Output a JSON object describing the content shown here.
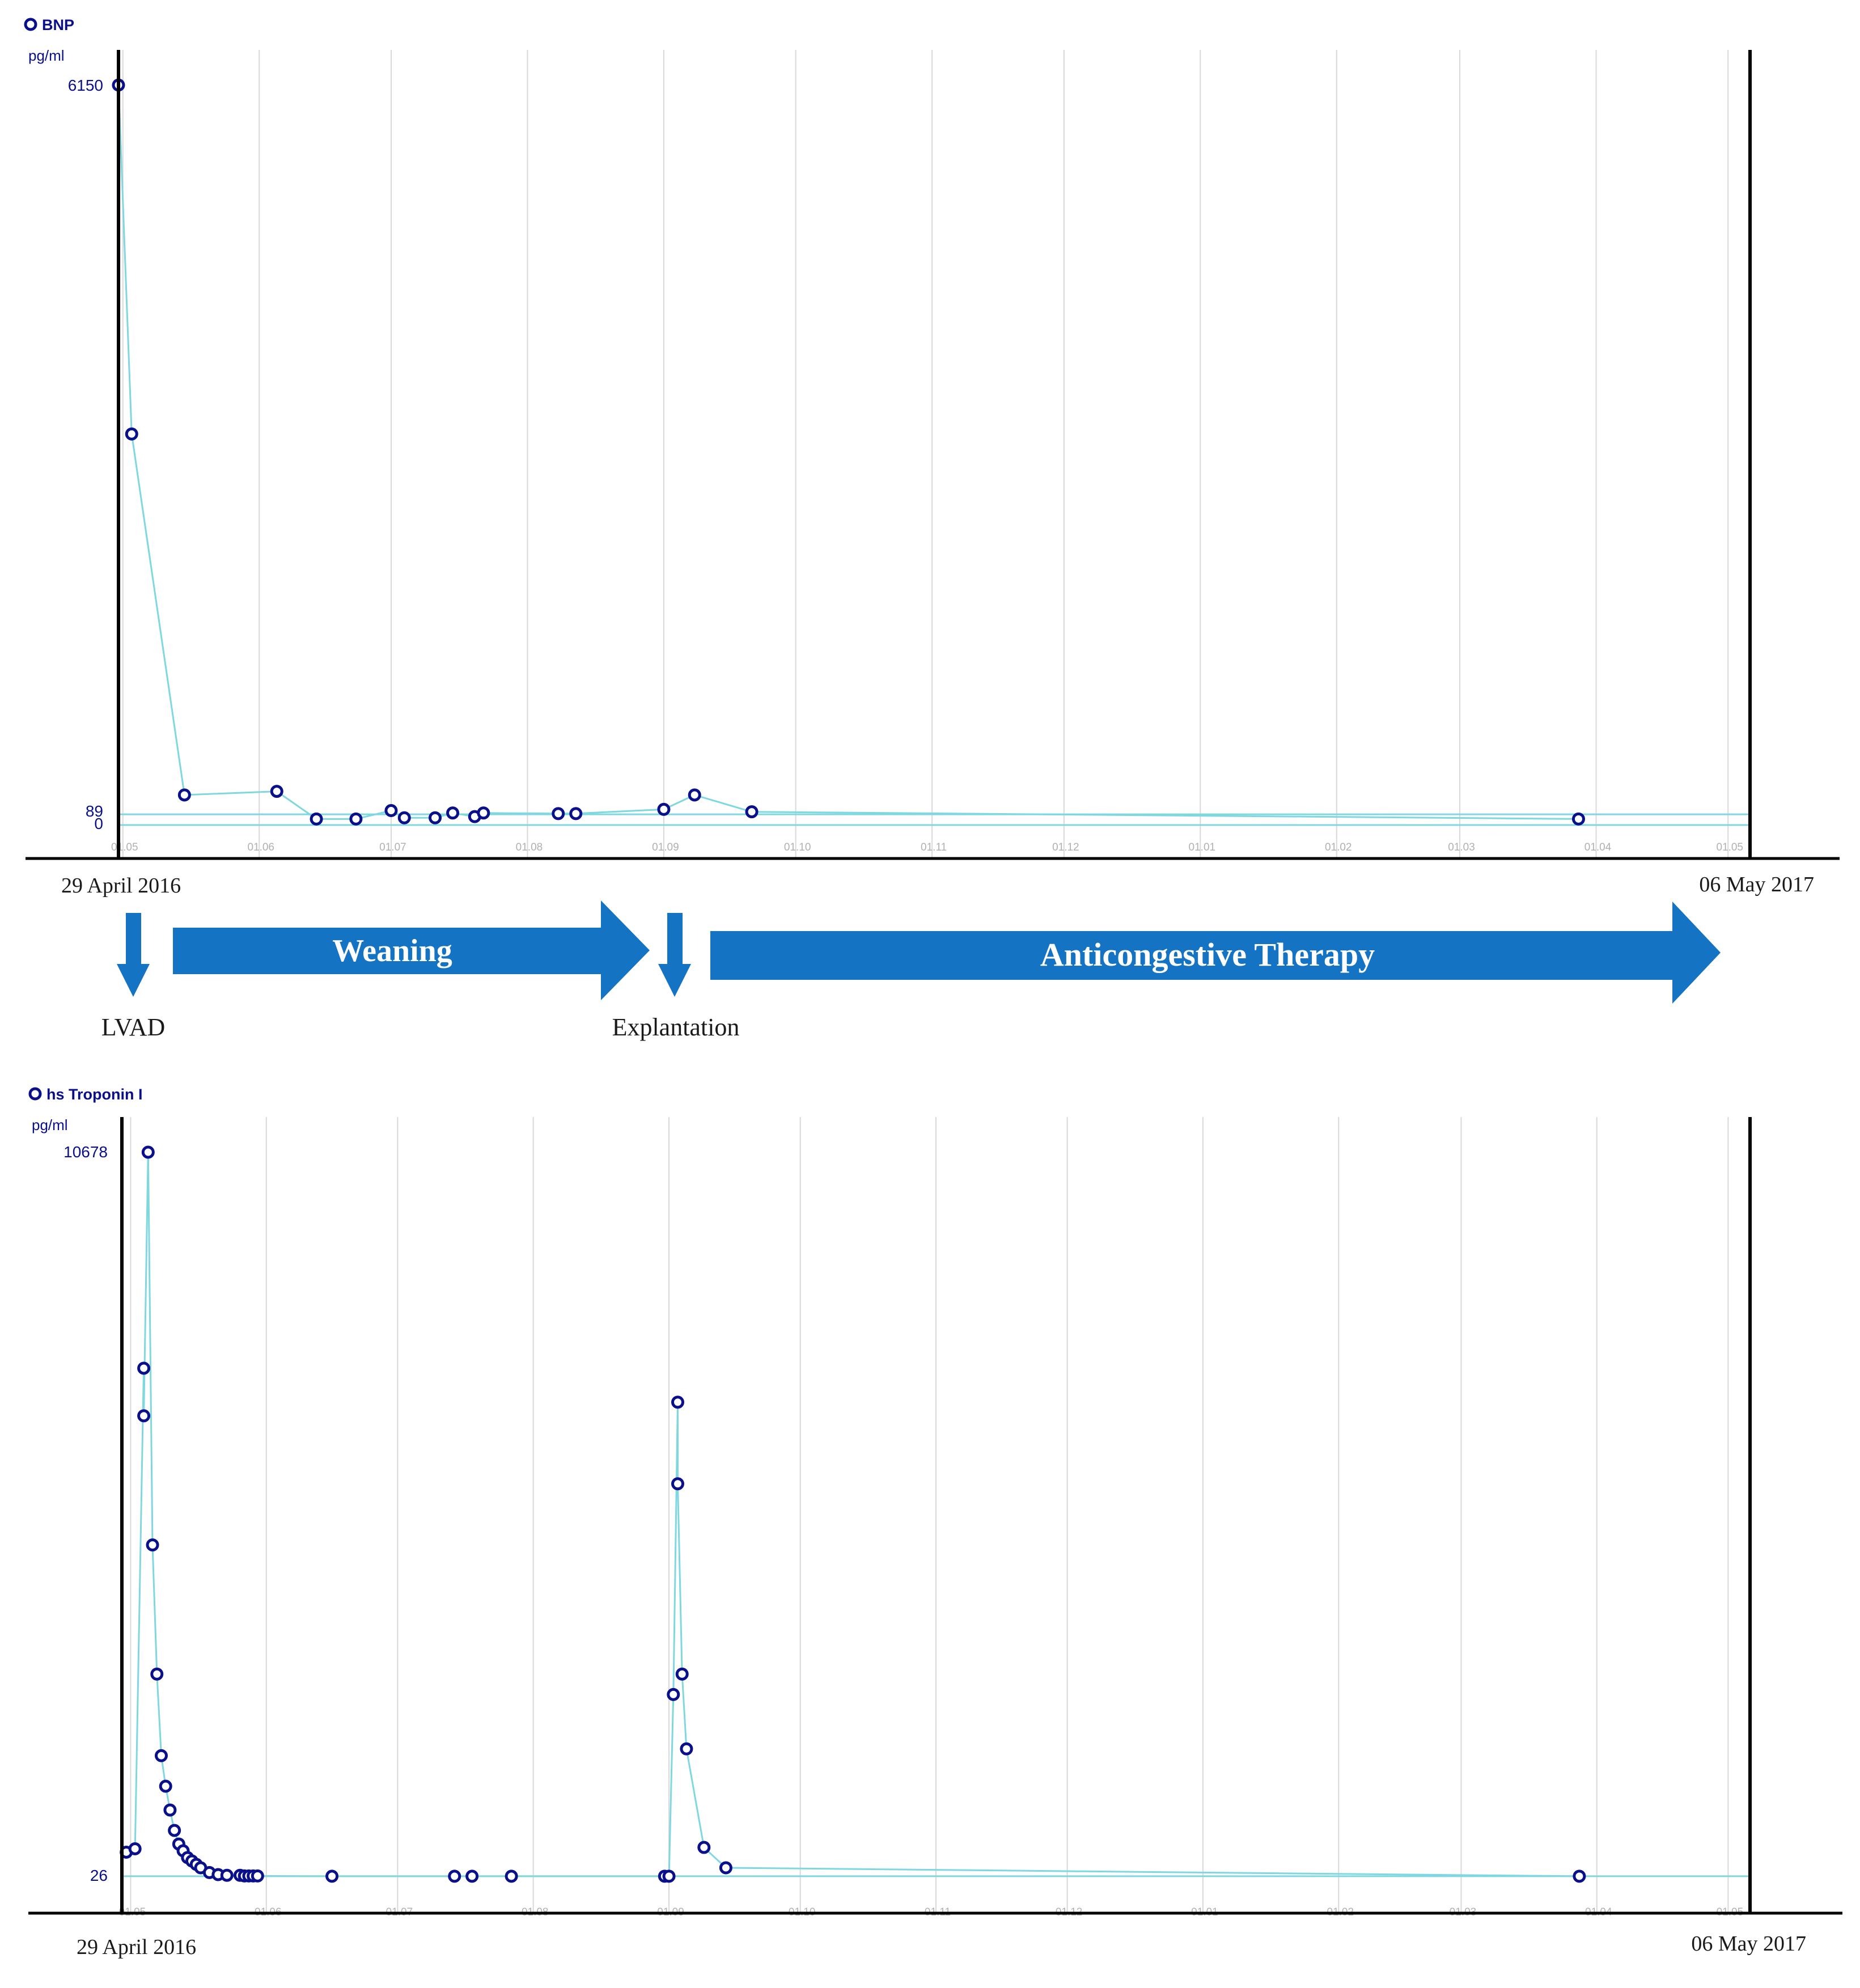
{
  "colors": {
    "series_line": "#7fd8df",
    "marker": "#0a0f8a",
    "grid": "#d9d9d9",
    "axis": "#000000",
    "arrow": "#1573c4",
    "arrow_text": "#ffffff",
    "label_text": "#1a1a1a"
  },
  "chart_data": [
    {
      "type": "line",
      "title": "BNP",
      "ylabel": "pg/ml",
      "y_ticks": [
        "6150",
        "89",
        "0"
      ],
      "reference_lines": [
        0,
        89
      ],
      "x_ticks": [
        "01.05",
        "01.06",
        "01.07",
        "01.08",
        "01.09",
        "01.10",
        "01.11",
        "01.12",
        "01.01",
        "01.02",
        "01.03",
        "01.04",
        "01.05"
      ],
      "x_tick_dates": [
        "2016-05-01",
        "2016-06-01",
        "2016-07-01",
        "2016-08-01",
        "2016-09-01",
        "2016-10-01",
        "2016-11-01",
        "2016-12-01",
        "2017-01-01",
        "2017-02-01",
        "2017-03-01",
        "2017-04-01",
        "2017-05-01"
      ],
      "xlim": [
        "2016-04-30",
        "2017-05-06"
      ],
      "ylim": [
        0,
        6150
      ],
      "x_start_label": "29 April 2016",
      "x_end_label": "06 May 2017",
      "grid": true,
      "series": [
        {
          "x": [
            "2016-04-30",
            "2016-05-03",
            "2016-05-15",
            "2016-06-05",
            "2016-06-14",
            "2016-06-23",
            "2016-07-01",
            "2016-07-04",
            "2016-07-11",
            "2016-07-15",
            "2016-07-20",
            "2016-07-22",
            "2016-08-08",
            "2016-08-12",
            "2016-09-01",
            "2016-09-08",
            "2016-09-21",
            "2017-03-28"
          ],
          "y": [
            6150,
            3250,
            250,
            280,
            50,
            50,
            120,
            60,
            60,
            100,
            70,
            100,
            95,
            95,
            130,
            250,
            110,
            50
          ]
        }
      ]
    },
    {
      "type": "line",
      "title": "hs Troponin I",
      "ylabel": "pg/ml",
      "y_ticks": [
        "10678",
        "26"
      ],
      "reference_lines": [
        26
      ],
      "x_ticks": [
        "01.05",
        "01.06",
        "01.07",
        "01.08",
        "01.09",
        "01.10",
        "01.11",
        "01.12",
        "01.01",
        "01.02",
        "01.03",
        "01.04",
        "01.05"
      ],
      "x_tick_dates": [
        "2016-05-01",
        "2016-06-01",
        "2016-07-01",
        "2016-08-01",
        "2016-09-01",
        "2016-10-01",
        "2016-11-01",
        "2016-12-01",
        "2017-01-01",
        "2017-02-01",
        "2017-03-01",
        "2017-04-01",
        "2017-05-01"
      ],
      "xlim": [
        "2016-04-29",
        "2017-05-06"
      ],
      "ylim": [
        0,
        10678
      ],
      "x_start_label": "29 April 2016",
      "x_end_label": "06 May 2017",
      "grid": true,
      "series": [
        {
          "x": [
            "2016-04-30",
            "2016-05-02",
            "2016-05-04",
            "2016-05-04",
            "2016-05-05",
            "2016-05-06",
            "2016-05-07",
            "2016-05-08",
            "2016-05-09",
            "2016-05-10",
            "2016-05-11",
            "2016-05-12",
            "2016-05-13",
            "2016-05-14",
            "2016-05-15",
            "2016-05-16",
            "2016-05-17",
            "2016-05-19",
            "2016-05-21",
            "2016-05-23",
            "2016-05-26",
            "2016-05-27",
            "2016-05-28",
            "2016-05-29",
            "2016-05-30",
            "2016-06-16",
            "2016-07-14",
            "2016-07-18",
            "2016-07-27",
            "2016-08-31",
            "2016-09-01",
            "2016-09-02",
            "2016-09-03",
            "2016-09-03",
            "2016-09-04",
            "2016-09-05",
            "2016-09-09",
            "2016-09-14",
            "2017-03-28"
          ],
          "y": [
            380,
            430,
            7500,
            6800,
            10678,
            4900,
            3000,
            1800,
            1350,
            1000,
            700,
            500,
            400,
            300,
            250,
            200,
            150,
            80,
            50,
            40,
            40,
            30,
            30,
            30,
            30,
            26,
            26,
            26,
            26,
            26,
            26,
            2700,
            7000,
            5800,
            3000,
            1900,
            450,
            150,
            26
          ]
        }
      ]
    }
  ],
  "timeline": {
    "start_label": "29 April 2016",
    "end_label": "06 May 2017",
    "lvad_label": "LVAD",
    "weaning_label": "Weaning",
    "explantation_label": "Explantation",
    "anticongestive_label": "Anticongestive Therapy"
  }
}
